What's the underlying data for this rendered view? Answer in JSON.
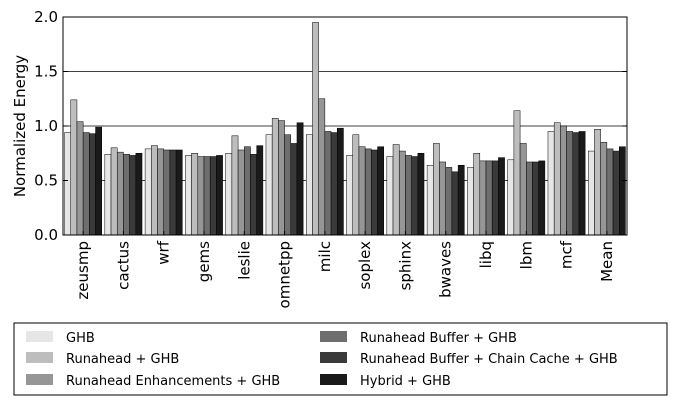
{
  "chart_data": {
    "type": "bar",
    "title": "",
    "xlabel": "",
    "ylabel": "Normalized Energy",
    "ylim": [
      0,
      2.0
    ],
    "yticks": [
      "0.0",
      "0.5",
      "1.0",
      "1.5",
      "2.0"
    ],
    "grid": "horizontal",
    "legend_position": "bottom",
    "categories": [
      "zeusmp",
      "cactus",
      "wrf",
      "gems",
      "leslie",
      "omnetpp",
      "milc",
      "soplex",
      "sphinx",
      "bwaves",
      "libq",
      "lbm",
      "mcf",
      "Mean"
    ],
    "series": [
      {
        "name": "GHB",
        "color": "#e6e6e6",
        "values": [
          0.94,
          0.74,
          0.79,
          0.73,
          0.75,
          0.92,
          0.92,
          0.73,
          0.72,
          0.64,
          0.62,
          0.69,
          0.95,
          0.77
        ]
      },
      {
        "name": "Runahead + GHB",
        "color": "#bdbdbd",
        "values": [
          1.24,
          0.8,
          0.82,
          0.75,
          0.91,
          1.07,
          1.95,
          0.92,
          0.83,
          0.84,
          0.75,
          1.14,
          1.03,
          0.97
        ]
      },
      {
        "name": "Runahead Enhancements + GHB",
        "color": "#969696",
        "values": [
          1.04,
          0.76,
          0.79,
          0.72,
          0.78,
          1.05,
          1.25,
          0.81,
          0.77,
          0.67,
          0.68,
          0.84,
          1.0,
          0.85
        ]
      },
      {
        "name": "Runahead Buffer + GHB",
        "color": "#6e6e6e",
        "values": [
          0.94,
          0.74,
          0.78,
          0.72,
          0.81,
          0.92,
          0.95,
          0.79,
          0.73,
          0.62,
          0.68,
          0.67,
          0.95,
          0.79
        ]
      },
      {
        "name": "Runahead Buffer + Chain Cache + GHB",
        "color": "#3a3a3a",
        "values": [
          0.93,
          0.73,
          0.78,
          0.72,
          0.74,
          0.84,
          0.94,
          0.78,
          0.72,
          0.58,
          0.68,
          0.67,
          0.94,
          0.77
        ]
      },
      {
        "name": "Hybrid + GHB",
        "color": "#1a1a1a",
        "values": [
          0.99,
          0.75,
          0.78,
          0.73,
          0.82,
          1.03,
          0.98,
          0.81,
          0.75,
          0.64,
          0.71,
          0.68,
          0.95,
          0.81
        ]
      }
    ]
  }
}
